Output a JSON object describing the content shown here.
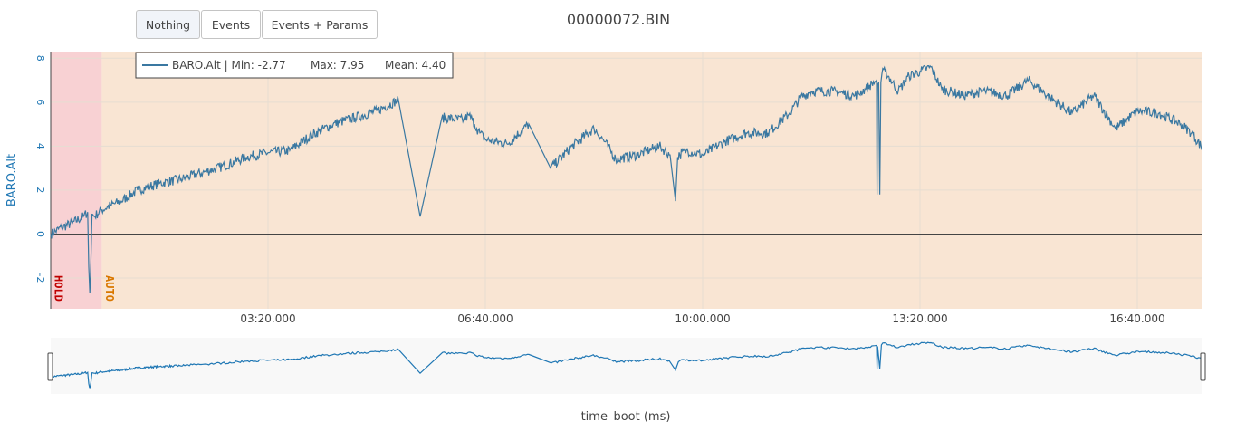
{
  "toolbar": {
    "buttons": [
      {
        "label": "Nothing",
        "active": true
      },
      {
        "label": "Events",
        "active": false
      },
      {
        "label": "Events + Params",
        "active": false
      }
    ]
  },
  "title": "00000072.BIN",
  "legend": {
    "series_label": "BARO.Alt | Min: -2.77",
    "max_label": "Max: 7.95",
    "mean_label": "Mean: 4.40"
  },
  "modes": [
    {
      "label": "HOLD",
      "color": "#c00000",
      "band_color": "#f8d1d3"
    },
    {
      "label": "AUTO",
      "color": "#d97700",
      "band_color": "#f9e5d3"
    }
  ],
  "colors": {
    "line": "#3a78a1",
    "axis_label": "#1f77b4",
    "rangeslider_bg": "#f8f8f8"
  },
  "chart_data": {
    "type": "line",
    "ylabel": "BARO.Alt",
    "xlabel": "time_boot (ms)",
    "xlim": [
      0,
      1060000
    ],
    "ylim": [
      -3.4,
      8.3
    ],
    "yticks": [
      -2,
      0,
      2,
      4,
      6,
      8
    ],
    "xticks": [
      {
        "value": 200000,
        "label": "03:20.000"
      },
      {
        "value": 400000,
        "label": "06:40.000"
      },
      {
        "value": 600000,
        "label": "10:00.000"
      },
      {
        "value": 800000,
        "label": "13:20.000"
      },
      {
        "value": 1000000,
        "label": "16:40.000"
      }
    ],
    "mode_bands": [
      {
        "mode": "HOLD",
        "start": 0,
        "end": 47000
      },
      {
        "mode": "AUTO",
        "start": 47000,
        "end": 1060000
      }
    ],
    "stats": {
      "min": -2.77,
      "max": 7.95,
      "mean": 4.4
    },
    "series": [
      {
        "name": "BARO.Alt",
        "x": [
          0,
          10000,
          20000,
          30000,
          34000,
          35000,
          36000,
          37000,
          38000,
          40000,
          47000,
          55000,
          65000,
          80000,
          100000,
          120000,
          140000,
          160000,
          180000,
          200000,
          220000,
          240000,
          260000,
          280000,
          300000,
          320000,
          340000,
          360000,
          380000,
          385000,
          388000,
          390000,
          392000,
          395000,
          400000,
          420000,
          440000,
          460000,
          480000,
          500000,
          510000,
          520000,
          540000,
          560000,
          570000,
          575000,
          577000,
          579000,
          585000,
          600000,
          620000,
          640000,
          660000,
          680000,
          690000,
          700000,
          720000,
          740000,
          750000,
          760000,
          760500,
          761000,
          762000,
          763000,
          764000,
          764500,
          765000,
          768000,
          780000,
          790000,
          800000,
          810000,
          820000,
          840000,
          860000,
          880000,
          900000,
          920000,
          940000,
          960000,
          980000,
          1000000,
          1020000,
          1040000,
          1050000,
          1060000
        ],
        "y": [
          0,
          0.3,
          0.5,
          0.8,
          1.0,
          -1.5,
          -2.7,
          -1.2,
          0.9,
          0.8,
          1.1,
          1.3,
          1.5,
          2.0,
          2.3,
          2.5,
          2.8,
          3.1,
          3.5,
          3.7,
          3.8,
          4.5,
          5.0,
          5.3,
          5.6,
          6.1,
          0.8,
          5.3,
          5.2,
          5.4,
          5.2,
          5.0,
          4.8,
          4.6,
          4.3,
          4.1,
          5.0,
          3.0,
          4.0,
          4.8,
          4.2,
          3.4,
          3.6,
          4.0,
          3.6,
          1.5,
          3.5,
          3.6,
          3.8,
          3.6,
          4.2,
          4.6,
          4.6,
          5.5,
          6.2,
          6.5,
          6.5,
          6.3,
          6.6,
          7.0,
          1.8,
          6.8,
          6.9,
          1.8,
          6.9,
          7.1,
          7.3,
          7.4,
          6.5,
          7.2,
          7.4,
          7.6,
          6.6,
          6.3,
          6.5,
          6.3,
          7.0,
          6.2,
          5.5,
          6.3,
          4.8,
          5.6,
          5.5,
          5.0,
          4.6,
          3.9
        ]
      }
    ]
  }
}
